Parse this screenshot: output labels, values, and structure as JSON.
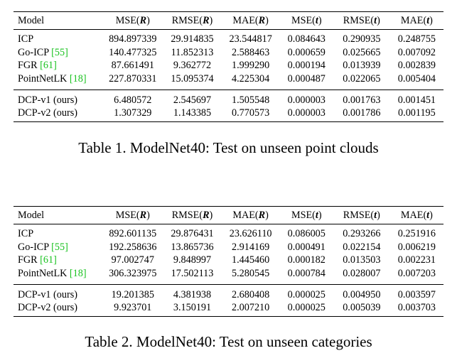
{
  "tables": [
    {
      "caption": "Table 1. ModelNet40: Test on unseen point clouds",
      "header": {
        "model": "Model",
        "cols": [
          {
            "metric": "MSE",
            "var": "R"
          },
          {
            "metric": "RMSE",
            "var": "R"
          },
          {
            "metric": "MAE",
            "var": "R"
          },
          {
            "metric": "MSE",
            "var": "t"
          },
          {
            "metric": "RMSE",
            "var": "t"
          },
          {
            "metric": "MAE",
            "var": "t"
          }
        ]
      },
      "baseline_rows": [
        {
          "name": "ICP",
          "cite": "",
          "values": [
            "894.897339",
            "29.914835",
            "23.544817",
            "0.084643",
            "0.290935",
            "0.248755"
          ],
          "bold": [
            false,
            false,
            false,
            false,
            false,
            false
          ]
        },
        {
          "name": "Go-ICP",
          "cite": "[55]",
          "values": [
            "140.477325",
            "11.852313",
            "2.588463",
            "0.000659",
            "0.025665",
            "0.007092"
          ],
          "bold": [
            false,
            false,
            false,
            false,
            false,
            false
          ]
        },
        {
          "name": "FGR",
          "cite": "[61]",
          "values": [
            "87.661491",
            "9.362772",
            "1.999290",
            "0.000194",
            "0.013939",
            "0.002839"
          ],
          "bold": [
            false,
            false,
            false,
            false,
            false,
            false
          ]
        },
        {
          "name": "PointNetLK",
          "cite": "[18]",
          "values": [
            "227.870331",
            "15.095374",
            "4.225304",
            "0.000487",
            "0.022065",
            "0.005404"
          ],
          "bold": [
            false,
            false,
            false,
            false,
            false,
            false
          ]
        }
      ],
      "ours_rows": [
        {
          "name": "DCP-v1 (ours)",
          "cite": "",
          "values": [
            "6.480572",
            "2.545697",
            "1.505548",
            "0.000003",
            "0.001763",
            "0.001451"
          ],
          "bold": [
            false,
            false,
            false,
            true,
            true,
            true
          ]
        },
        {
          "name": "DCP-v2 (ours)",
          "cite": "",
          "values": [
            "1.307329",
            "1.143385",
            "0.770573",
            "0.000003",
            "0.001786",
            "0.001195"
          ],
          "bold": [
            true,
            true,
            true,
            true,
            false,
            true
          ]
        }
      ]
    },
    {
      "caption": "Table 2. ModelNet40: Test on unseen categories",
      "header": {
        "model": "Model",
        "cols": [
          {
            "metric": "MSE",
            "var": "R"
          },
          {
            "metric": "RMSE",
            "var": "R"
          },
          {
            "metric": "MAE",
            "var": "R"
          },
          {
            "metric": "MSE",
            "var": "t"
          },
          {
            "metric": "RMSE",
            "var": "t"
          },
          {
            "metric": "MAE",
            "var": "t"
          }
        ]
      },
      "baseline_rows": [
        {
          "name": "ICP",
          "cite": "",
          "values": [
            "892.601135",
            "29.876431",
            "23.626110",
            "0.086005",
            "0.293266",
            "0.251916"
          ],
          "bold": [
            false,
            false,
            false,
            false,
            false,
            false
          ]
        },
        {
          "name": "Go-ICP",
          "cite": "[55]",
          "values": [
            "192.258636",
            "13.865736",
            "2.914169",
            "0.000491",
            "0.022154",
            "0.006219"
          ],
          "bold": [
            false,
            false,
            false,
            false,
            false,
            false
          ]
        },
        {
          "name": "FGR",
          "cite": "[61]",
          "values": [
            "97.002747",
            "9.848997",
            "1.445460",
            "0.000182",
            "0.013503",
            "0.002231"
          ],
          "bold": [
            false,
            false,
            true,
            false,
            false,
            false
          ]
        },
        {
          "name": "PointNetLK",
          "cite": "[18]",
          "values": [
            "306.323975",
            "17.502113",
            "5.280545",
            "0.000784",
            "0.028007",
            "0.007203"
          ],
          "bold": [
            false,
            false,
            false,
            false,
            false,
            false
          ]
        }
      ],
      "ours_rows": [
        {
          "name": "DCP-v1 (ours)",
          "cite": "",
          "values": [
            "19.201385",
            "4.381938",
            "2.680408",
            "0.000025",
            "0.004950",
            "0.003597"
          ],
          "bold": [
            false,
            false,
            false,
            true,
            true,
            true
          ]
        },
        {
          "name": "DCP-v2 (ours)",
          "cite": "",
          "values": [
            "9.923701",
            "3.150191",
            "2.007210",
            "0.000025",
            "0.005039",
            "0.003703"
          ],
          "bold": [
            true,
            true,
            false,
            true,
            false,
            false
          ]
        }
      ]
    }
  ],
  "colors": {
    "citation": "#19c21f",
    "text": "#000000",
    "background": "#ffffff"
  }
}
